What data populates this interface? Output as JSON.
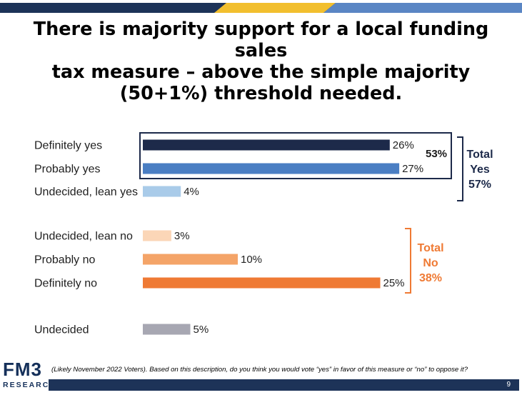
{
  "title": {
    "line1": "There is majority support for a local funding sales",
    "line2": "tax measure – above the simple majority",
    "line3": "(50+1%) threshold needed."
  },
  "colors": {
    "definitely_yes": "#1d2a4a",
    "probably_yes": "#4a7ec3",
    "lean_yes": "#a9cbe9",
    "lean_no": "#fbd6b7",
    "probably_no": "#f4a468",
    "definitely_no": "#ef7a34",
    "undecided": "#a7a7b2",
    "yes_accent": "#1d2a4a",
    "no_accent": "#ef7a34",
    "top_bar_navy": "#1d3358",
    "top_bar_gold": "#f2bf2e",
    "top_bar_blue": "#5a86c4"
  },
  "chart_data": {
    "type": "bar",
    "orientation": "horizontal",
    "categories": [
      "Definitely yes",
      "Probably yes",
      "Undecided, lean yes",
      "Undecided, lean no",
      "Probably no",
      "Definitely no",
      "Undecided"
    ],
    "values": [
      26,
      27,
      4,
      3,
      10,
      25,
      5
    ],
    "value_labels": [
      "26%",
      "27%",
      "4%",
      "3%",
      "10%",
      "25%",
      "5%"
    ],
    "xlim": [
      0,
      50
    ],
    "grid": false,
    "annotations": {
      "yes_subtotal": "53%",
      "total_yes": [
        "Total",
        "Yes",
        "57%"
      ],
      "total_no": [
        "Total",
        "No",
        "38%"
      ]
    }
  },
  "footer": {
    "logo_text": "FM3",
    "logo_subtext": "RESEARCH",
    "footnote": "(Likely November 2022 Voters). Based on this description, do you think you would vote “yes” in favor of this measure or “no” to oppose it?",
    "page_number": "9"
  }
}
